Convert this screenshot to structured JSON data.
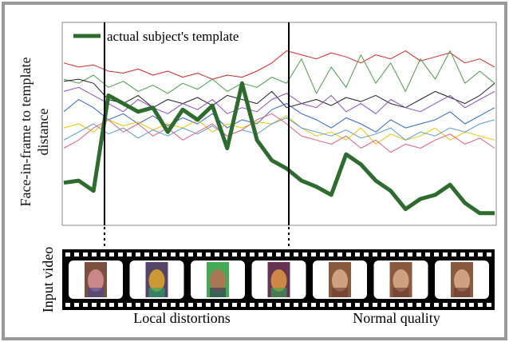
{
  "chart_data": {
    "type": "line",
    "ylabel": "Face-in-frame to template distance",
    "ylim": [
      0,
      100
    ],
    "legend": "top-left",
    "series": [
      {
        "name": "actual subject's template",
        "color": "#2e6b2e",
        "width": 5,
        "values": [
          21,
          22,
          17,
          64,
          60,
          56,
          58,
          46,
          57,
          52,
          59,
          38,
          70,
          42,
          32,
          28,
          22,
          19,
          15,
          35,
          30,
          22,
          17,
          8,
          13,
          15,
          20,
          11,
          6,
          6
        ]
      },
      {
        "color": "#d62728",
        "width": 1,
        "values": [
          80,
          78,
          79,
          76,
          75,
          77,
          74,
          76,
          73,
          75,
          72,
          74,
          73,
          76,
          80,
          86,
          84,
          82,
          85,
          83,
          80,
          84,
          82,
          86,
          81,
          83,
          85,
          80,
          82,
          78
        ]
      },
      {
        "color": "#4a9a4a",
        "width": 1,
        "values": [
          72,
          70,
          74,
          68,
          71,
          66,
          69,
          65,
          70,
          67,
          72,
          66,
          70,
          68,
          73,
          70,
          82,
          65,
          78,
          68,
          84,
          70,
          80,
          66,
          82,
          72,
          86,
          70,
          76,
          70
        ]
      },
      {
        "color": "#222222",
        "width": 1,
        "values": [
          71,
          72,
          70,
          62,
          60,
          64,
          58,
          62,
          60,
          63,
          59,
          64,
          62,
          60,
          66,
          58,
          60,
          62,
          59,
          63,
          61,
          64,
          60,
          58,
          62,
          66,
          63,
          60,
          64,
          70
        ]
      },
      {
        "color": "#8a4fbf",
        "width": 1,
        "values": [
          66,
          68,
          64,
          60,
          56,
          62,
          58,
          55,
          60,
          57,
          62,
          55,
          58,
          56,
          62,
          65,
          60,
          58,
          64,
          56,
          60,
          55,
          62,
          58,
          56,
          60,
          64,
          58,
          62,
          66
        ]
      },
      {
        "color": "#3366cc",
        "width": 1,
        "values": [
          56,
          62,
          58,
          52,
          55,
          50,
          54,
          49,
          53,
          50,
          55,
          48,
          52,
          50,
          57,
          60,
          55,
          52,
          48,
          53,
          50,
          46,
          52,
          48,
          50,
          52,
          56,
          50,
          54,
          58
        ]
      },
      {
        "color": "#e8c800",
        "width": 1,
        "values": [
          48,
          50,
          46,
          52,
          49,
          51,
          47,
          50,
          48,
          52,
          46,
          50,
          48,
          51,
          50,
          54,
          48,
          44,
          46,
          42,
          48,
          40,
          45,
          42,
          44,
          48,
          42,
          46,
          44,
          42
        ]
      },
      {
        "color": "#5b9bd5",
        "width": 1,
        "values": [
          42,
          46,
          50,
          45,
          48,
          43,
          47,
          44,
          48,
          45,
          49,
          44,
          47,
          45,
          50,
          53,
          48,
          46,
          44,
          47,
          43,
          45,
          48,
          42,
          46,
          44,
          48,
          46,
          50,
          52
        ]
      },
      {
        "color": "#e06080",
        "width": 1,
        "values": [
          38,
          42,
          48,
          52,
          46,
          50,
          44,
          48,
          42,
          46,
          50,
          44,
          47,
          52,
          55,
          50,
          44,
          42,
          40,
          44,
          38,
          42,
          36,
          40,
          38,
          42,
          45,
          40,
          43,
          38
        ]
      }
    ]
  },
  "filmstrip": {
    "label": "Input video",
    "segments": [
      "Local distortions",
      "Normal quality"
    ]
  }
}
